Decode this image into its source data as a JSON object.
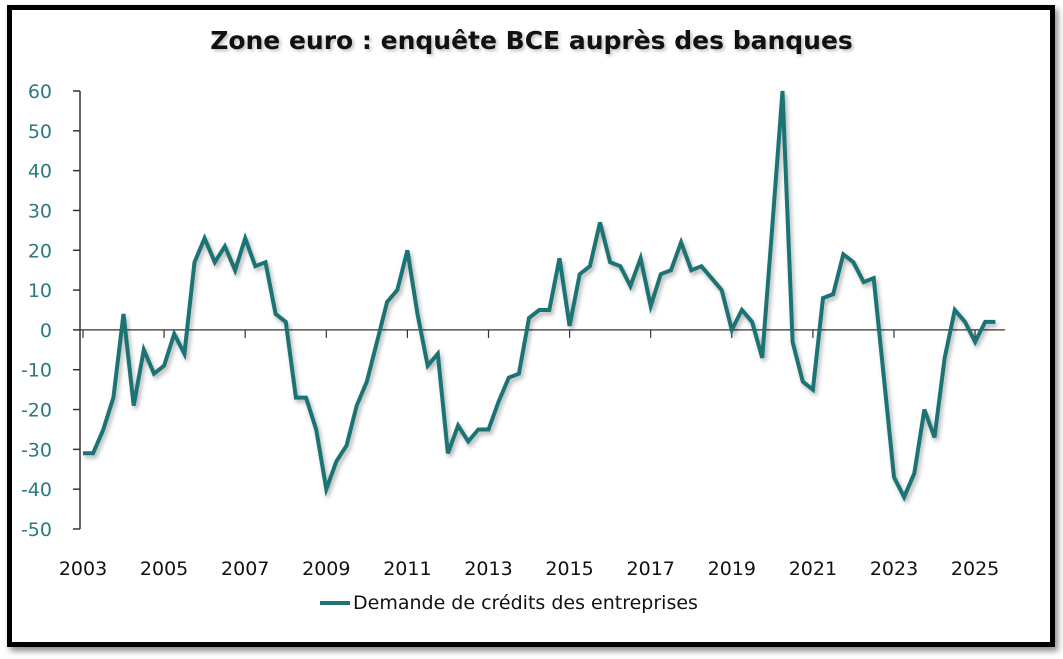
{
  "chart_data": {
    "type": "line",
    "title": "Zone euro : enquête BCE auprès des banques",
    "xlabel": "",
    "ylabel": "",
    "ylim": [
      -50,
      60
    ],
    "yticks": [
      "60",
      "50",
      "40",
      "30",
      "20",
      "10",
      "0",
      "-10",
      "-20",
      "-30",
      "-40",
      "-50"
    ],
    "xticks": [
      "2003",
      "2005",
      "2007",
      "2009",
      "2011",
      "2013",
      "2015",
      "2017",
      "2019",
      "2021",
      "2023",
      "2025"
    ],
    "xlim": [
      2003,
      2025.5
    ],
    "x_start": "2003 Q1",
    "frequency": "quarterly",
    "grid": false,
    "legend_position": "bottom",
    "line_color": "#1f7373",
    "series": [
      {
        "name": "Demande de crédits des entreprises",
        "values": [
          -31,
          -31,
          -25,
          -17,
          4,
          -19,
          -5,
          -11,
          -9,
          -1,
          -6,
          17,
          23,
          17,
          21,
          15,
          23,
          16,
          17,
          4,
          2,
          -17,
          -17,
          -25,
          -40,
          -33,
          -29,
          -19,
          -13,
          -3,
          7,
          10,
          20,
          4,
          -9,
          -6,
          -31,
          -24,
          -28,
          -25,
          -25,
          -18,
          -12,
          -11,
          3,
          5,
          5,
          18,
          1,
          14,
          16,
          27,
          17,
          16,
          11,
          18,
          6,
          14,
          15,
          22,
          15,
          16,
          13,
          10,
          0,
          5,
          2,
          -7,
          26,
          60,
          -3,
          -13,
          -15,
          8,
          9,
          19,
          17,
          12,
          13,
          -12,
          -37,
          -42,
          -36,
          -20,
          -27,
          -7,
          5,
          2,
          -3,
          2,
          2
        ]
      }
    ]
  }
}
